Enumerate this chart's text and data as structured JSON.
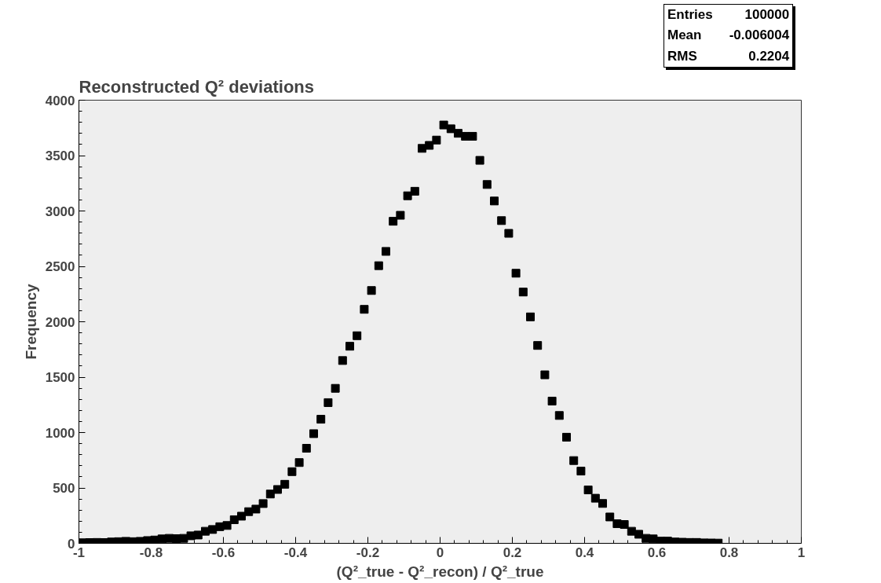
{
  "chart_data": {
    "type": "scatter",
    "title": "Reconstructed Q² deviations",
    "xlabel": "(Q²_true - Q²_recon) / Q²_true",
    "ylabel": "Frequency",
    "annotations": [
      "Entries 100000",
      "Mean -0.006004",
      "RMS 0.2204"
    ],
    "x": [
      -0.99,
      -0.97,
      -0.95,
      -0.93,
      -0.91,
      -0.89,
      -0.87,
      -0.85,
      -0.83,
      -0.81,
      -0.79,
      -0.77,
      -0.75,
      -0.73,
      -0.71,
      -0.69,
      -0.67,
      -0.65,
      -0.63,
      -0.61,
      -0.59,
      -0.57,
      -0.55,
      -0.53,
      -0.51,
      -0.49,
      -0.47,
      -0.45,
      -0.43,
      -0.41,
      -0.39,
      -0.37,
      -0.35,
      -0.33,
      -0.31,
      -0.29,
      -0.27,
      -0.25,
      -0.23,
      -0.21,
      -0.19,
      -0.17,
      -0.15,
      -0.13,
      -0.11,
      -0.09,
      -0.07,
      -0.05,
      -0.03,
      -0.01,
      0.01,
      0.03,
      0.05,
      0.07,
      0.09,
      0.11,
      0.13,
      0.15,
      0.17,
      0.19,
      0.21,
      0.23,
      0.25,
      0.27,
      0.29,
      0.31,
      0.33,
      0.35,
      0.37,
      0.39,
      0.41,
      0.43,
      0.45,
      0.47,
      0.49,
      0.51,
      0.53,
      0.55,
      0.57,
      0.59,
      0.61,
      0.63,
      0.65,
      0.67,
      0.69,
      0.71,
      0.73,
      0.75,
      0.77
    ],
    "values": [
      5,
      7,
      8,
      7,
      12,
      15,
      18,
      15,
      18,
      25,
      30,
      40,
      45,
      42,
      45,
      68,
      75,
      109,
      125,
      150,
      161,
      213,
      245,
      286,
      309,
      359,
      445,
      486,
      533,
      647,
      729,
      858,
      990,
      1120,
      1270,
      1399,
      1650,
      1779,
      1874,
      2112,
      2282,
      2506,
      2635,
      2907,
      2961,
      3137,
      3178,
      3565,
      3592,
      3640,
      3776,
      3742,
      3701,
      3674,
      3674,
      3457,
      3239,
      3090,
      2913,
      2798,
      2438,
      2268,
      2044,
      1786,
      1521,
      1284,
      1154,
      958,
      747,
      652,
      482,
      407,
      360,
      238,
      177,
      170,
      109,
      82,
      45,
      40,
      20,
      20,
      12,
      10,
      8,
      8,
      4,
      3,
      2
    ],
    "xerrors": [
      0.01,
      0.01,
      0.01,
      0.01,
      0.01,
      0.01,
      0.01,
      0.01,
      0.01,
      0.01,
      0.01,
      0.01,
      0.01,
      0.01,
      0.01,
      0.01,
      0.01,
      0.01,
      0.01,
      0.01,
      0.01,
      0.01,
      0.01,
      0.01,
      0.01,
      0.01,
      0.01,
      0.01,
      0.01,
      0.01,
      0.01,
      0.01,
      0.01,
      0.01,
      0.01,
      0.01,
      0.01,
      0.01,
      0.01,
      0.01,
      0.01,
      0.01,
      0.01,
      0.01,
      0.01,
      0.01,
      0.01,
      0.01,
      0.01,
      0.01,
      0.01,
      0.01,
      0.01,
      0.01,
      0.01,
      0.01,
      0.01,
      0.01,
      0.01,
      0.01,
      0.01,
      0.01,
      0.01,
      0.01,
      0.01,
      0.01,
      0.01,
      0.01,
      0.01,
      0.01,
      0.01,
      0.01,
      0.01,
      0.01,
      0.01,
      0.01,
      0.01,
      0.01,
      0.01,
      0.01,
      0.01,
      0.01,
      0.01,
      0.01,
      0.01,
      0.01,
      0.01,
      0.01,
      0.01
    ],
    "color": "#000000",
    "marker": "square",
    "xlim": [
      -1,
      1
    ],
    "ylim": [
      0,
      4000
    ],
    "xticks": [
      -1,
      -0.8,
      -0.6,
      -0.4,
      -0.2,
      0,
      0.2,
      0.4,
      0.6,
      0.8,
      1
    ],
    "yticks": [
      0,
      500,
      1000,
      1500,
      2000,
      2500,
      3000,
      3500,
      4000
    ],
    "grid": false
  }
}
